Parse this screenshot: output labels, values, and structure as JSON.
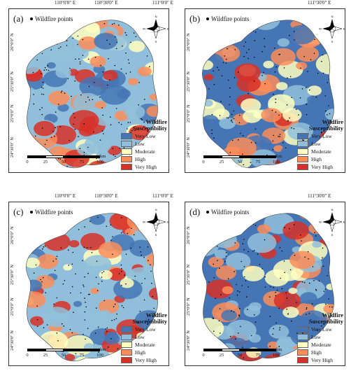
{
  "top_labels": [
    "110°0'0\" E",
    "110°30'0\" E",
    "111°0'0\" E",
    "111°30'0\" E"
  ],
  "lat_labels": [
    "26°0'0\" N",
    "25°30'0\" N",
    "25°0'0\" N",
    "24°30'0\" N"
  ],
  "panels": [
    {
      "id": "a",
      "label": "(a)"
    },
    {
      "id": "b",
      "label": "(b)"
    },
    {
      "id": "c",
      "label": "(c)"
    },
    {
      "id": "d",
      "label": "(d)"
    }
  ],
  "points_label": "Wildfire points",
  "legend": {
    "title_line1": "Wildfire",
    "title_line2": "Susceptibility",
    "classes": [
      {
        "label": "Very Low",
        "color": "#4575b4"
      },
      {
        "label": "Low",
        "color": "#91bfdb"
      },
      {
        "label": "Moderate",
        "color": "#ffffbf"
      },
      {
        "label": "High",
        "color": "#fc8d59"
      },
      {
        "label": "Very High",
        "color": "#d73027"
      }
    ]
  },
  "scalebar": {
    "ticks": [
      "0",
      "25",
      "50",
      "75",
      "100"
    ],
    "unit": "km"
  },
  "north_arrow": {
    "icon": "compass-rose-icon",
    "letters": [
      "N",
      "S",
      "E",
      "W"
    ]
  }
}
